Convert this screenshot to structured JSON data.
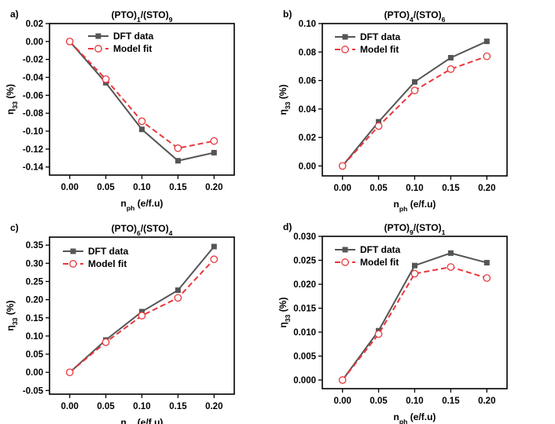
{
  "legend": {
    "dft": "DFT data",
    "model": "Model fit"
  },
  "colors": {
    "dft": "#555555",
    "model": "#e8383d"
  },
  "chart_data": [
    {
      "type": "line",
      "panel_label": "a)",
      "title": {
        "main": "(PTO)",
        "s1": "1",
        "mid": "/(STO)",
        "s2": "9"
      },
      "xlabel": {
        "main": "n",
        "sub": "ph",
        "rest": " (e/f.u)"
      },
      "ylabel": {
        "main": "η",
        "sub": "33",
        "rest": " (%)"
      },
      "x": [
        0.0,
        0.05,
        0.1,
        0.15,
        0.2
      ],
      "x_ticks": [
        "0.00",
        "0.05",
        "0.10",
        "0.15",
        "0.20"
      ],
      "xlim": [
        -0.028,
        0.228
      ],
      "y_ticks": [
        "0.02",
        "0.00",
        "-0.02",
        "-0.04",
        "-0.06",
        "-0.08",
        "-0.10",
        "-0.12",
        "-0.14"
      ],
      "y_tick_values": [
        0.02,
        0.0,
        -0.02,
        -0.04,
        -0.06,
        -0.08,
        -0.1,
        -0.12,
        -0.14
      ],
      "ylim": [
        -0.149,
        0.02
      ],
      "series": [
        {
          "name": "DFT data",
          "values": [
            0.0,
            -0.046,
            -0.098,
            -0.133,
            -0.124
          ]
        },
        {
          "name": "Model fit",
          "values": [
            0.0,
            -0.042,
            -0.089,
            -0.119,
            -0.111
          ]
        }
      ],
      "legend_position": "top-right"
    },
    {
      "type": "line",
      "panel_label": "b)",
      "title": {
        "main": "(PTO)",
        "s1": "4",
        "mid": "/(STO)",
        "s2": "6"
      },
      "xlabel": {
        "main": "n",
        "sub": "ph",
        "rest": " (e/f.u)"
      },
      "ylabel": {
        "main": "η",
        "sub": "33",
        "rest": " (%)"
      },
      "x": [
        0.0,
        0.05,
        0.1,
        0.15,
        0.2
      ],
      "x_ticks": [
        "0.00",
        "0.05",
        "0.10",
        "0.15",
        "0.20"
      ],
      "xlim": [
        -0.028,
        0.228
      ],
      "y_ticks": [
        "0.10",
        "0.08",
        "0.06",
        "0.04",
        "0.02",
        "0.00"
      ],
      "y_tick_values": [
        0.1,
        0.08,
        0.06,
        0.04,
        0.02,
        0.0
      ],
      "ylim": [
        -0.007,
        0.1
      ],
      "series": [
        {
          "name": "DFT data",
          "values": [
            0.0,
            0.031,
            0.059,
            0.076,
            0.0875
          ]
        },
        {
          "name": "Model fit",
          "values": [
            0.0,
            0.028,
            0.053,
            0.068,
            0.077
          ]
        }
      ],
      "legend_position": "top-left"
    },
    {
      "type": "line",
      "panel_label": "c)",
      "title": {
        "main": "(PTO)",
        "s1": "6",
        "mid": "/(STO)",
        "s2": "4"
      },
      "xlabel": {
        "main": "n",
        "sub": "ph",
        "rest": " (e/f.u)"
      },
      "ylabel": {
        "main": "η",
        "sub": "33",
        "rest": " (%)"
      },
      "x": [
        0.0,
        0.05,
        0.1,
        0.15,
        0.2
      ],
      "x_ticks": [
        "0.00",
        "0.05",
        "0.10",
        "0.15",
        "0.20"
      ],
      "xlim": [
        -0.028,
        0.228
      ],
      "y_ticks": [
        "0.35",
        "0.30",
        "0.25",
        "0.20",
        "0.15",
        "0.10",
        "0.05",
        "0.00",
        "-0.05"
      ],
      "y_tick_values": [
        0.35,
        0.3,
        0.25,
        0.2,
        0.15,
        0.1,
        0.05,
        0.0,
        -0.05
      ],
      "ylim": [
        -0.06,
        0.372
      ],
      "series": [
        {
          "name": "DFT data",
          "values": [
            0.0,
            0.089,
            0.167,
            0.226,
            0.346
          ]
        },
        {
          "name": "Model fit",
          "values": [
            0.0,
            0.083,
            0.156,
            0.205,
            0.311
          ]
        }
      ],
      "legend_position": "top-left"
    },
    {
      "type": "line",
      "panel_label": "d)",
      "title": {
        "main": "(PTO)",
        "s1": "9",
        "mid": "/(STO)",
        "s2": "1"
      },
      "xlabel": {
        "main": "n",
        "sub": "ph",
        "rest": " (e/f.u)"
      },
      "ylabel": {
        "main": "η",
        "sub": "33",
        "rest": " (%)"
      },
      "x": [
        0.0,
        0.05,
        0.1,
        0.15,
        0.2
      ],
      "x_ticks": [
        "0.00",
        "0.05",
        "0.10",
        "0.15",
        "0.20"
      ],
      "xlim": [
        -0.028,
        0.228
      ],
      "y_ticks": [
        "0.030",
        "0.025",
        "0.020",
        "0.015",
        "0.010",
        "0.005",
        "0.000"
      ],
      "y_tick_values": [
        0.03,
        0.025,
        0.02,
        0.015,
        0.01,
        0.005,
        0.0
      ],
      "ylim": [
        -0.0018,
        0.03
      ],
      "series": [
        {
          "name": "DFT data",
          "values": [
            0.0,
            0.0103,
            0.0239,
            0.0265,
            0.0245
          ]
        },
        {
          "name": "Model fit",
          "values": [
            0.0,
            0.0096,
            0.0222,
            0.0236,
            0.0213
          ]
        }
      ],
      "legend_position": "top-left"
    }
  ]
}
